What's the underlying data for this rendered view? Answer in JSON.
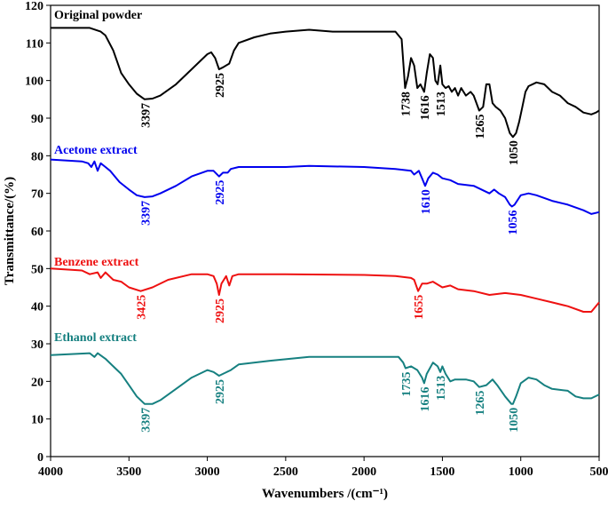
{
  "chart_data": {
    "type": "line",
    "title": "",
    "xlabel": "Wavenumbers /(cm⁻¹)",
    "ylabel": "Transmittance/(%)",
    "xlim": [
      4000,
      500
    ],
    "ylim": [
      0,
      120
    ],
    "xticks": [
      4000,
      3500,
      3000,
      2500,
      2000,
      1500,
      1000,
      500
    ],
    "yticks": [
      0,
      10,
      20,
      30,
      40,
      50,
      60,
      70,
      80,
      90,
      100,
      110,
      120
    ],
    "grid": false,
    "series": [
      {
        "name": "Original powder",
        "color": "#000000",
        "points": [
          [
            4000,
            114
          ],
          [
            3750,
            114
          ],
          [
            3680,
            113
          ],
          [
            3650,
            112
          ],
          [
            3600,
            108
          ],
          [
            3550,
            102
          ],
          [
            3500,
            99
          ],
          [
            3450,
            96.5
          ],
          [
            3400,
            95
          ],
          [
            3350,
            95.2
          ],
          [
            3300,
            96
          ],
          [
            3200,
            99
          ],
          [
            3100,
            103
          ],
          [
            3000,
            107
          ],
          [
            2975,
            107.5
          ],
          [
            2950,
            106
          ],
          [
            2925,
            103
          ],
          [
            2900,
            103.5
          ],
          [
            2860,
            104.5
          ],
          [
            2830,
            108
          ],
          [
            2800,
            110
          ],
          [
            2700,
            111.5
          ],
          [
            2600,
            112.5
          ],
          [
            2500,
            113
          ],
          [
            2350,
            113.5
          ],
          [
            2200,
            113
          ],
          [
            2000,
            113
          ],
          [
            1800,
            113
          ],
          [
            1760,
            111
          ],
          [
            1738,
            98
          ],
          [
            1720,
            101
          ],
          [
            1700,
            106
          ],
          [
            1680,
            104
          ],
          [
            1660,
            98
          ],
          [
            1640,
            99
          ],
          [
            1616,
            97
          ],
          [
            1600,
            102
          ],
          [
            1580,
            107
          ],
          [
            1560,
            106
          ],
          [
            1545,
            100
          ],
          [
            1530,
            99
          ],
          [
            1513,
            104
          ],
          [
            1500,
            99
          ],
          [
            1480,
            98
          ],
          [
            1460,
            98.5
          ],
          [
            1440,
            97
          ],
          [
            1420,
            98
          ],
          [
            1400,
            96
          ],
          [
            1380,
            98
          ],
          [
            1350,
            96
          ],
          [
            1320,
            97
          ],
          [
            1300,
            96
          ],
          [
            1265,
            92
          ],
          [
            1240,
            93
          ],
          [
            1220,
            99
          ],
          [
            1200,
            99
          ],
          [
            1180,
            94
          ],
          [
            1160,
            93
          ],
          [
            1130,
            92
          ],
          [
            1100,
            90
          ],
          [
            1070,
            86
          ],
          [
            1050,
            85
          ],
          [
            1030,
            86
          ],
          [
            1010,
            89
          ],
          [
            990,
            93
          ],
          [
            970,
            97
          ],
          [
            950,
            98.5
          ],
          [
            900,
            99.5
          ],
          [
            850,
            99
          ],
          [
            800,
            97
          ],
          [
            750,
            96
          ],
          [
            700,
            94
          ],
          [
            650,
            93
          ],
          [
            600,
            91.5
          ],
          [
            550,
            91
          ],
          [
            520,
            91.5
          ],
          [
            500,
            92
          ]
        ],
        "annotations": [
          [
            3397,
            95,
            "3397"
          ],
          [
            2925,
            103,
            "2925"
          ],
          [
            1738,
            98,
            "1738"
          ],
          [
            1616,
            97,
            "1616"
          ],
          [
            1513,
            98,
            "1513"
          ],
          [
            1265,
            92,
            "1265"
          ],
          [
            1050,
            85,
            "1050"
          ]
        ]
      },
      {
        "name": "Acetone extract",
        "color": "#0000ee",
        "points": [
          [
            4000,
            79
          ],
          [
            3800,
            78.5
          ],
          [
            3760,
            78
          ],
          [
            3740,
            77
          ],
          [
            3720,
            78.5
          ],
          [
            3700,
            76
          ],
          [
            3680,
            78
          ],
          [
            3650,
            77
          ],
          [
            3620,
            76
          ],
          [
            3600,
            75
          ],
          [
            3560,
            73
          ],
          [
            3500,
            71
          ],
          [
            3450,
            69.5
          ],
          [
            3400,
            69
          ],
          [
            3350,
            69.2
          ],
          [
            3300,
            70
          ],
          [
            3200,
            72
          ],
          [
            3100,
            74.5
          ],
          [
            3000,
            76
          ],
          [
            2960,
            76
          ],
          [
            2925,
            74.5
          ],
          [
            2900,
            75.5
          ],
          [
            2870,
            75.5
          ],
          [
            2850,
            76.5
          ],
          [
            2800,
            77
          ],
          [
            2500,
            77
          ],
          [
            2350,
            77.3
          ],
          [
            2000,
            77
          ],
          [
            1800,
            76.5
          ],
          [
            1700,
            76
          ],
          [
            1680,
            75
          ],
          [
            1650,
            76
          ],
          [
            1630,
            74
          ],
          [
            1610,
            72
          ],
          [
            1590,
            74
          ],
          [
            1560,
            75.5
          ],
          [
            1530,
            75
          ],
          [
            1500,
            74
          ],
          [
            1450,
            73.5
          ],
          [
            1400,
            72.5
          ],
          [
            1300,
            72
          ],
          [
            1200,
            70
          ],
          [
            1170,
            71
          ],
          [
            1140,
            70
          ],
          [
            1100,
            69
          ],
          [
            1070,
            67
          ],
          [
            1056,
            66.5
          ],
          [
            1040,
            67
          ],
          [
            1000,
            69.5
          ],
          [
            950,
            70
          ],
          [
            900,
            69.5
          ],
          [
            800,
            68
          ],
          [
            700,
            67
          ],
          [
            600,
            65.5
          ],
          [
            550,
            64.5
          ],
          [
            500,
            65
          ]
        ],
        "annotations": [
          [
            3397,
            69,
            "3397"
          ],
          [
            2925,
            74.5,
            "2925"
          ],
          [
            1610,
            72,
            "1610"
          ],
          [
            1056,
            66.5,
            "1056"
          ]
        ]
      },
      {
        "name": "Benzene extract",
        "color": "#ee1111",
        "points": [
          [
            4000,
            50
          ],
          [
            3800,
            49.5
          ],
          [
            3750,
            48.5
          ],
          [
            3700,
            49
          ],
          [
            3680,
            47.5
          ],
          [
            3650,
            49
          ],
          [
            3600,
            47
          ],
          [
            3550,
            46.5
          ],
          [
            3500,
            45
          ],
          [
            3425,
            44
          ],
          [
            3350,
            45
          ],
          [
            3250,
            47
          ],
          [
            3100,
            48.5
          ],
          [
            3000,
            48.5
          ],
          [
            2960,
            48
          ],
          [
            2940,
            46
          ],
          [
            2925,
            43
          ],
          [
            2910,
            46
          ],
          [
            2880,
            48
          ],
          [
            2860,
            45.5
          ],
          [
            2840,
            48
          ],
          [
            2800,
            48.5
          ],
          [
            2500,
            48.5
          ],
          [
            2000,
            48.3
          ],
          [
            1800,
            48
          ],
          [
            1700,
            47.5
          ],
          [
            1680,
            47
          ],
          [
            1655,
            44
          ],
          [
            1630,
            46
          ],
          [
            1600,
            46
          ],
          [
            1560,
            46.5
          ],
          [
            1500,
            45
          ],
          [
            1450,
            45.5
          ],
          [
            1400,
            44.5
          ],
          [
            1300,
            44
          ],
          [
            1200,
            43
          ],
          [
            1100,
            43.5
          ],
          [
            1000,
            43
          ],
          [
            900,
            42
          ],
          [
            800,
            41
          ],
          [
            700,
            40
          ],
          [
            600,
            38.5
          ],
          [
            550,
            38.5
          ],
          [
            500,
            41
          ]
        ],
        "annotations": [
          [
            3425,
            44,
            "3425"
          ],
          [
            2925,
            43,
            "2925"
          ],
          [
            1655,
            44,
            "1655"
          ]
        ]
      },
      {
        "name": "Ethanol extract",
        "color": "#168080",
        "points": [
          [
            4000,
            27
          ],
          [
            3750,
            27.5
          ],
          [
            3720,
            26.5
          ],
          [
            3700,
            27.5
          ],
          [
            3650,
            26
          ],
          [
            3600,
            24
          ],
          [
            3550,
            22
          ],
          [
            3500,
            19
          ],
          [
            3450,
            16
          ],
          [
            3400,
            14
          ],
          [
            3350,
            14
          ],
          [
            3300,
            15
          ],
          [
            3200,
            18
          ],
          [
            3100,
            21
          ],
          [
            3000,
            23
          ],
          [
            2960,
            22.5
          ],
          [
            2925,
            21.5
          ],
          [
            2900,
            22
          ],
          [
            2850,
            23
          ],
          [
            2800,
            24.5
          ],
          [
            2600,
            25.5
          ],
          [
            2350,
            26.5
          ],
          [
            2000,
            26.5
          ],
          [
            1780,
            26.5
          ],
          [
            1750,
            25
          ],
          [
            1735,
            23.5
          ],
          [
            1700,
            24
          ],
          [
            1660,
            23
          ],
          [
            1630,
            21
          ],
          [
            1616,
            19.5
          ],
          [
            1600,
            22
          ],
          [
            1560,
            25
          ],
          [
            1530,
            24
          ],
          [
            1513,
            22.5
          ],
          [
            1500,
            24
          ],
          [
            1480,
            22
          ],
          [
            1450,
            20
          ],
          [
            1420,
            20.5
          ],
          [
            1350,
            20.5
          ],
          [
            1300,
            20
          ],
          [
            1265,
            18.5
          ],
          [
            1220,
            19
          ],
          [
            1180,
            20.5
          ],
          [
            1150,
            19
          ],
          [
            1100,
            16
          ],
          [
            1060,
            14
          ],
          [
            1050,
            14
          ],
          [
            1030,
            16
          ],
          [
            1000,
            19.5
          ],
          [
            950,
            21
          ],
          [
            900,
            20.5
          ],
          [
            850,
            19
          ],
          [
            800,
            18
          ],
          [
            700,
            17.5
          ],
          [
            650,
            16
          ],
          [
            600,
            15.5
          ],
          [
            550,
            15.5
          ],
          [
            500,
            16.5
          ]
        ],
        "annotations": [
          [
            3397,
            14,
            "3397"
          ],
          [
            2925,
            21.5,
            "2925"
          ],
          [
            1735,
            23.5,
            "1735"
          ],
          [
            1616,
            19.5,
            "1616"
          ],
          [
            1513,
            22.5,
            "1513"
          ],
          [
            1265,
            18.5,
            "1265"
          ],
          [
            1050,
            14,
            "1050"
          ]
        ]
      }
    ]
  }
}
